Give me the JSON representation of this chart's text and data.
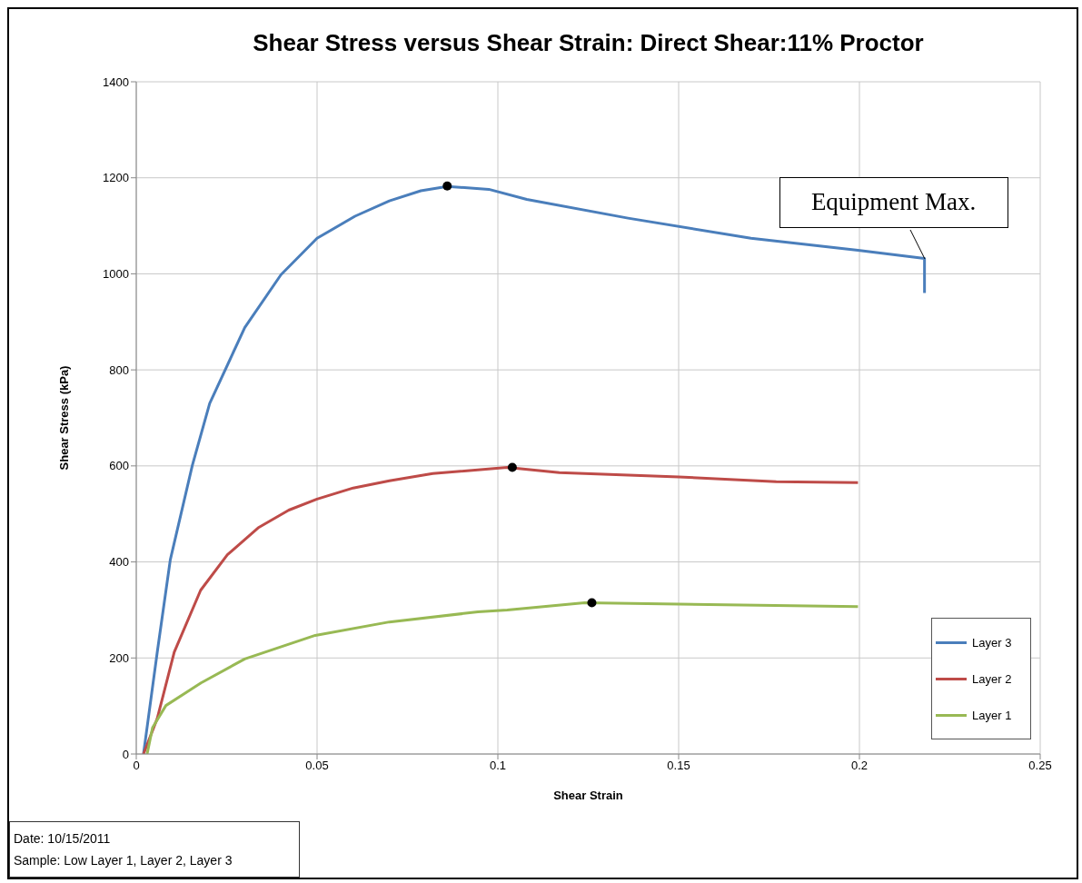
{
  "chart_data": {
    "type": "line",
    "title": "Shear Stress versus Shear Strain: Direct Shear:11% Proctor",
    "xlabel": "Shear Strain",
    "ylabel": "Shear Stress (kPa)",
    "xlim": [
      0,
      0.25
    ],
    "xticks": [
      0,
      0.05,
      0.1,
      0.15,
      0.2,
      0.25
    ],
    "ylim": [
      0,
      1400
    ],
    "yticks": [
      0,
      200,
      400,
      600,
      800,
      1000,
      1200,
      1400
    ],
    "grid": true,
    "legend": "bottom right",
    "marker": "none",
    "line_style": "solid",
    "series": [
      {
        "name": "Layer 3",
        "color": "#4a7ebb",
        "x": [
          0.002,
          0.0058,
          0.0094,
          0.0155,
          0.0203,
          0.03,
          0.04,
          0.05,
          0.0605,
          0.07,
          0.0787,
          0.086,
          0.0975,
          0.108,
          0.136,
          0.17,
          0.1996,
          0.218,
          0.218
        ],
        "values": [
          0,
          212,
          404,
          601,
          730,
          888,
          998,
          1074,
          1120,
          1152,
          1173,
          1182,
          1176,
          1155,
          1116,
          1074,
          1049,
          1032,
          960
        ]
      },
      {
        "name": "Layer 2",
        "color": "#be4b48",
        "x": [
          0.002,
          0.0058,
          0.0105,
          0.0178,
          0.0252,
          0.0337,
          0.0422,
          0.05,
          0.06,
          0.07,
          0.082,
          0.1026,
          0.117,
          0.15,
          0.177,
          0.1996
        ],
        "values": [
          0,
          74,
          212,
          341,
          415,
          471,
          508,
          531,
          554,
          569,
          584,
          597,
          586,
          577,
          567,
          565
        ]
      },
      {
        "name": "Layer 1",
        "color": "#98b954",
        "x": [
          0.003,
          0.0045,
          0.0082,
          0.0179,
          0.03,
          0.0495,
          0.07,
          0.0945,
          0.1026,
          0.124,
          0.15,
          0.1996
        ],
        "values": [
          0,
          55,
          101,
          148,
          198,
          247,
          275,
          296,
          300,
          315,
          312,
          307
        ]
      },
      {
        "type": "scatter",
        "marker": "circle",
        "color": "#000000",
        "x": [
          0.086,
          0.104,
          0.126
        ],
        "values": [
          1183,
          597,
          315
        ]
      }
    ],
    "annotations": [
      {
        "text": "Equipment Max.",
        "x": 0.218,
        "y": 1032
      },
      "Date: 10/15/2011",
      "Sample: Low Layer 1, Layer 2, Layer 3"
    ]
  }
}
